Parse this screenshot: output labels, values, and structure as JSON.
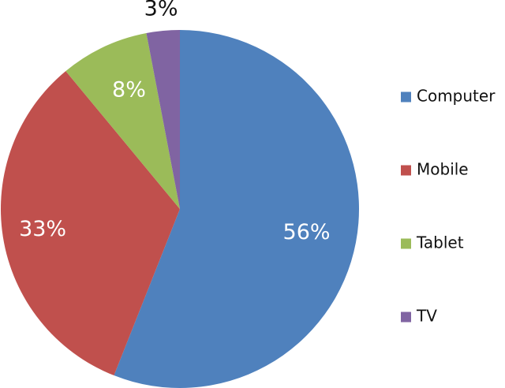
{
  "chart_data": {
    "type": "pie",
    "title": "",
    "categories": [
      "Computer",
      "Mobile",
      "Tablet",
      "TV"
    ],
    "values": [
      56,
      33,
      8,
      3
    ],
    "labels": [
      "56%",
      "33%",
      "8%",
      "3%"
    ],
    "colors": [
      "#4f81bd",
      "#c0504d",
      "#9bbb59",
      "#8064a2"
    ],
    "label_colors": [
      "#ffffff",
      "#ffffff",
      "#ffffff",
      "#111111"
    ],
    "start_angle_deg": 0,
    "direction": "clockwise",
    "legend_position": "right"
  }
}
